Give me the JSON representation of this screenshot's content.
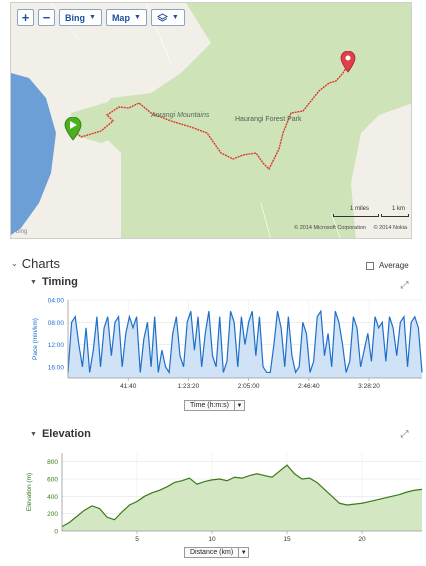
{
  "map": {
    "toolbar": {
      "zoom_in": "+",
      "zoom_out": "−",
      "provider": "Bing",
      "view": "Map",
      "layers_icon": "layers-icon"
    },
    "labels": {
      "mountains": "Aorangi Mountains",
      "park": "Haurangi Forest Park"
    },
    "scale": {
      "miles": "1 miles",
      "km": "1 km"
    },
    "copyright": {
      "microsoft": "© 2014 Microsoft Corporation",
      "nokia": "© 2014 Nokia"
    },
    "logo_text": "bing",
    "colors": {
      "track": "#d93a2b",
      "forest": "#cfe3b9",
      "water": "#6b9fd6",
      "land": "#f2efe8",
      "start": "#4caf1e",
      "end": "#e0404a"
    }
  },
  "charts": {
    "title": "Charts",
    "average_label": "Average",
    "average_checked": false
  },
  "chart_data": [
    {
      "type": "area",
      "title": "Timing",
      "ylabel": "Pace (min/km)",
      "xlabel": "Time (h:m:s)",
      "y_inverted": true,
      "ylim": [
        18,
        4
      ],
      "yticks": [
        "04:00",
        "08:00",
        "12:00",
        "16:00"
      ],
      "ytick_values": [
        4,
        8,
        12,
        16
      ],
      "xticks": [
        "41:40",
        "1:23:20",
        "2:05:00",
        "2:46:40",
        "3:28:20"
      ],
      "xtick_values": [
        2500,
        5000,
        7500,
        10000,
        12500
      ],
      "xlim": [
        0,
        14700
      ],
      "color": "#1f6fc9",
      "fill": "#cfe2f6",
      "x": [
        0,
        150,
        300,
        450,
        600,
        750,
        900,
        1050,
        1200,
        1350,
        1500,
        1650,
        1800,
        1950,
        2100,
        2250,
        2400,
        2550,
        2700,
        2850,
        3000,
        3150,
        3300,
        3450,
        3600,
        3750,
        3900,
        4050,
        4200,
        4350,
        4500,
        4650,
        4800,
        4950,
        5100,
        5250,
        5400,
        5550,
        5700,
        5850,
        6000,
        6150,
        6300,
        6450,
        6600,
        6750,
        6900,
        7050,
        7200,
        7350,
        7500,
        7650,
        7800,
        7950,
        8100,
        8250,
        8400,
        8550,
        8700,
        8850,
        9000,
        9150,
        9300,
        9450,
        9600,
        9750,
        9900,
        10050,
        10200,
        10350,
        10500,
        10650,
        10800,
        10950,
        11100,
        11250,
        11400,
        11550,
        11700,
        11850,
        12000,
        12150,
        12300,
        12450,
        12600,
        12750,
        12900,
        13050,
        13200,
        13350,
        13500,
        13650,
        13800,
        13950,
        14100,
        14250,
        14400,
        14550,
        14700
      ],
      "values": [
        17,
        8,
        7,
        12,
        16,
        9,
        17,
        13,
        7,
        16,
        9,
        7,
        14,
        8,
        7,
        16,
        10,
        7,
        9,
        7,
        17,
        11,
        8,
        16,
        7,
        17,
        13,
        16,
        17,
        10,
        7,
        14,
        16,
        8,
        6,
        13,
        7,
        16,
        10,
        6,
        14,
        16,
        7,
        17,
        15,
        6,
        8,
        16,
        7,
        12,
        8,
        6,
        14,
        7,
        16,
        17,
        17,
        12,
        6,
        9,
        16,
        7,
        14,
        17,
        16,
        8,
        10,
        17,
        15,
        7,
        6,
        14,
        10,
        16,
        6,
        8,
        12,
        17,
        15,
        7,
        9,
        16,
        13,
        10,
        15,
        7,
        9,
        8,
        15,
        7,
        9,
        14,
        8,
        7,
        16,
        8,
        7,
        9,
        17
      ]
    },
    {
      "type": "area",
      "title": "Elevation",
      "ylabel": "Elevation (m)",
      "xlabel": "Distance (km)",
      "ylim": [
        0,
        900
      ],
      "yticks": [
        "0",
        "200",
        "400",
        "600",
        "800"
      ],
      "ytick_values": [
        0,
        200,
        400,
        600,
        800
      ],
      "xticks": [
        "5",
        "10",
        "15",
        "20"
      ],
      "xtick_values": [
        5,
        10,
        15,
        20
      ],
      "xlim": [
        0,
        24
      ],
      "color": "#3a7a1a",
      "fill": "#d3e8c2",
      "x": [
        0,
        0.5,
        1,
        1.5,
        2,
        2.5,
        3,
        3.5,
        4,
        4.5,
        5,
        5.5,
        6,
        6.5,
        7,
        7.5,
        8,
        8.5,
        9,
        9.5,
        10,
        10.5,
        11,
        11.5,
        12,
        12.5,
        13,
        13.5,
        14,
        14.5,
        15,
        15.5,
        16,
        16.5,
        17,
        17.5,
        18,
        18.5,
        19,
        19.5,
        20,
        20.5,
        21,
        21.5,
        22,
        22.5,
        23,
        23.5,
        24
      ],
      "values": [
        50,
        100,
        170,
        240,
        290,
        260,
        160,
        130,
        220,
        300,
        340,
        400,
        440,
        470,
        510,
        560,
        580,
        610,
        540,
        570,
        590,
        600,
        580,
        620,
        610,
        640,
        660,
        640,
        620,
        690,
        760,
        660,
        600,
        610,
        560,
        480,
        400,
        320,
        300,
        310,
        320,
        340,
        360,
        380,
        400,
        420,
        450,
        470,
        480
      ]
    }
  ]
}
